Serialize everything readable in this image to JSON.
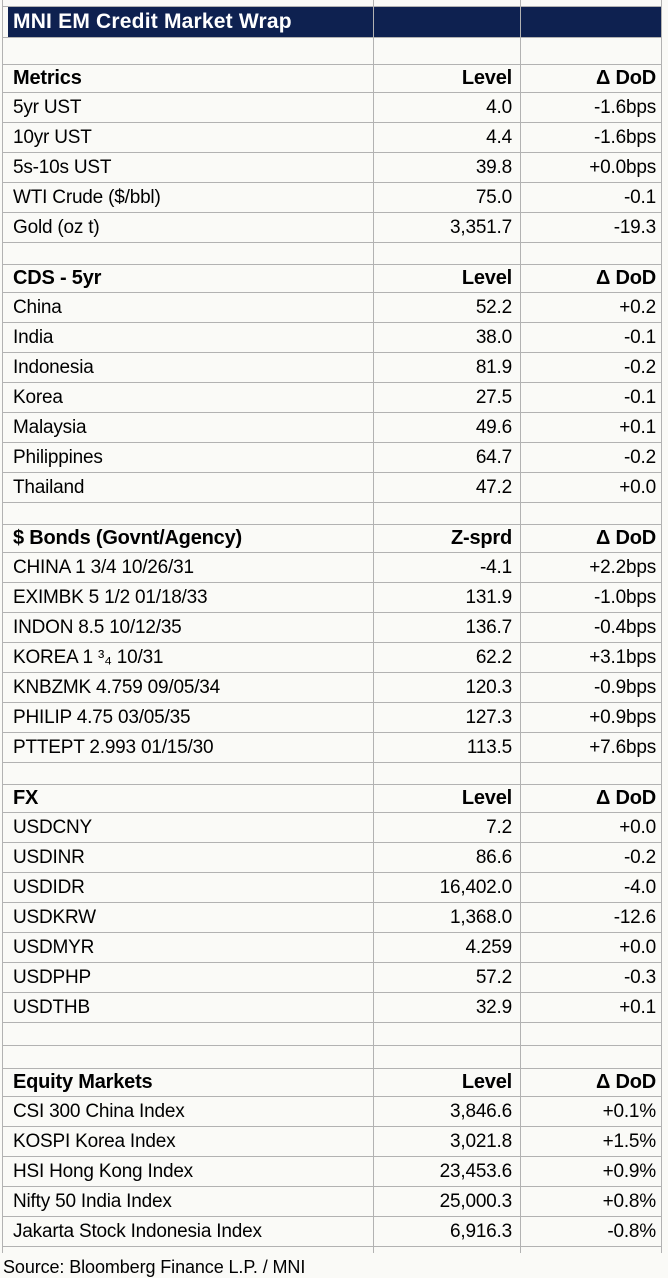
{
  "title": "MNI EM Credit Market Wrap",
  "source_note": "Source: Bloomberg Finance L.P. / MNI",
  "colors": {
    "header_bar": "#0e2150",
    "header_bar_text": "#ffffff",
    "grid_line": "#b2b2b2",
    "background": "#fafaf7",
    "body_text": "#000000"
  },
  "sections": [
    {
      "name": "Metrics",
      "value_header": "Level",
      "delta_header": "Δ DoD",
      "rows": [
        {
          "label": "5yr UST",
          "value": "4.0",
          "delta": "-1.6bps"
        },
        {
          "label": "10yr UST",
          "value": "4.4",
          "delta": "-1.6bps"
        },
        {
          "label": "5s-10s UST",
          "value": "39.8",
          "delta": "+0.0bps"
        },
        {
          "label": "WTI Crude ($/bbl)",
          "value": "75.0",
          "delta": "-0.1"
        },
        {
          "label": "Gold (oz t)",
          "value": "3,351.7",
          "delta": "-19.3"
        }
      ]
    },
    {
      "name": "CDS - 5yr",
      "value_header": "Level",
      "delta_header": "Δ DoD",
      "rows": [
        {
          "label": "China",
          "value": "52.2",
          "delta": "+0.2"
        },
        {
          "label": "India",
          "value": "38.0",
          "delta": "-0.1"
        },
        {
          "label": "Indonesia",
          "value": "81.9",
          "delta": "-0.2"
        },
        {
          "label": "Korea",
          "value": "27.5",
          "delta": "-0.1"
        },
        {
          "label": "Malaysia",
          "value": "49.6",
          "delta": "+0.1"
        },
        {
          "label": "Philippines",
          "value": "64.7",
          "delta": "-0.2"
        },
        {
          "label": "Thailand",
          "value": "47.2",
          "delta": "+0.0"
        }
      ]
    },
    {
      "name": "$ Bonds (Govnt/Agency)",
      "value_header": "Z-sprd",
      "delta_header": "Δ DoD",
      "rows": [
        {
          "label": "CHINA 1 3/4 10/26/31",
          "value": "-4.1",
          "delta": "+2.2bps"
        },
        {
          "label": "EXIMBK 5 1/2 01/18/33",
          "value": "131.9",
          "delta": "-1.0bps"
        },
        {
          "label": "INDON 8.5 10/12/35",
          "value": "136.7",
          "delta": "-0.4bps"
        },
        {
          "label": "KOREA 1 ³₄ 10/31",
          "value": "62.2",
          "delta": "+3.1bps"
        },
        {
          "label": "KNBZMK 4.759 09/05/34",
          "value": "120.3",
          "delta": "-0.9bps"
        },
        {
          "label": "PHILIP 4.75 03/05/35",
          "value": "127.3",
          "delta": "+0.9bps"
        },
        {
          "label": "PTTEPT 2.993 01/15/30",
          "value": "113.5",
          "delta": "+7.6bps"
        }
      ]
    },
    {
      "name": "FX",
      "value_header": "Level",
      "delta_header": "Δ DoD",
      "rows": [
        {
          "label": "USDCNY",
          "value": "7.2",
          "delta": "+0.0"
        },
        {
          "label": "USDINR",
          "value": "86.6",
          "delta": "-0.2"
        },
        {
          "label": "USDIDR",
          "value": "16,402.0",
          "delta": "-4.0"
        },
        {
          "label": "USDKRW",
          "value": "1,368.0",
          "delta": "-12.6"
        },
        {
          "label": "USDMYR",
          "value": "4.259",
          "delta": "+0.0"
        },
        {
          "label": "USDPHP",
          "value": "57.2",
          "delta": "-0.3"
        },
        {
          "label": "USDTHB",
          "value": "32.9",
          "delta": "+0.1"
        }
      ]
    },
    {
      "name": "Equity Markets",
      "value_header": "Level",
      "delta_header": "Δ DoD",
      "rows": [
        {
          "label": "CSI 300 China Index",
          "value": "3,846.6",
          "delta": "+0.1%"
        },
        {
          "label": "KOSPI Korea Index",
          "value": "3,021.8",
          "delta": "+1.5%"
        },
        {
          "label": "HSI Hong Kong Index",
          "value": "23,453.6",
          "delta": "+0.9%"
        },
        {
          "label": "Nifty 50 India Index",
          "value": "25,000.3",
          "delta": "+0.8%"
        },
        {
          "label": "Jakarta Stock Indonesia Index",
          "value": "6,916.3",
          "delta": "-0.8%"
        }
      ]
    }
  ]
}
